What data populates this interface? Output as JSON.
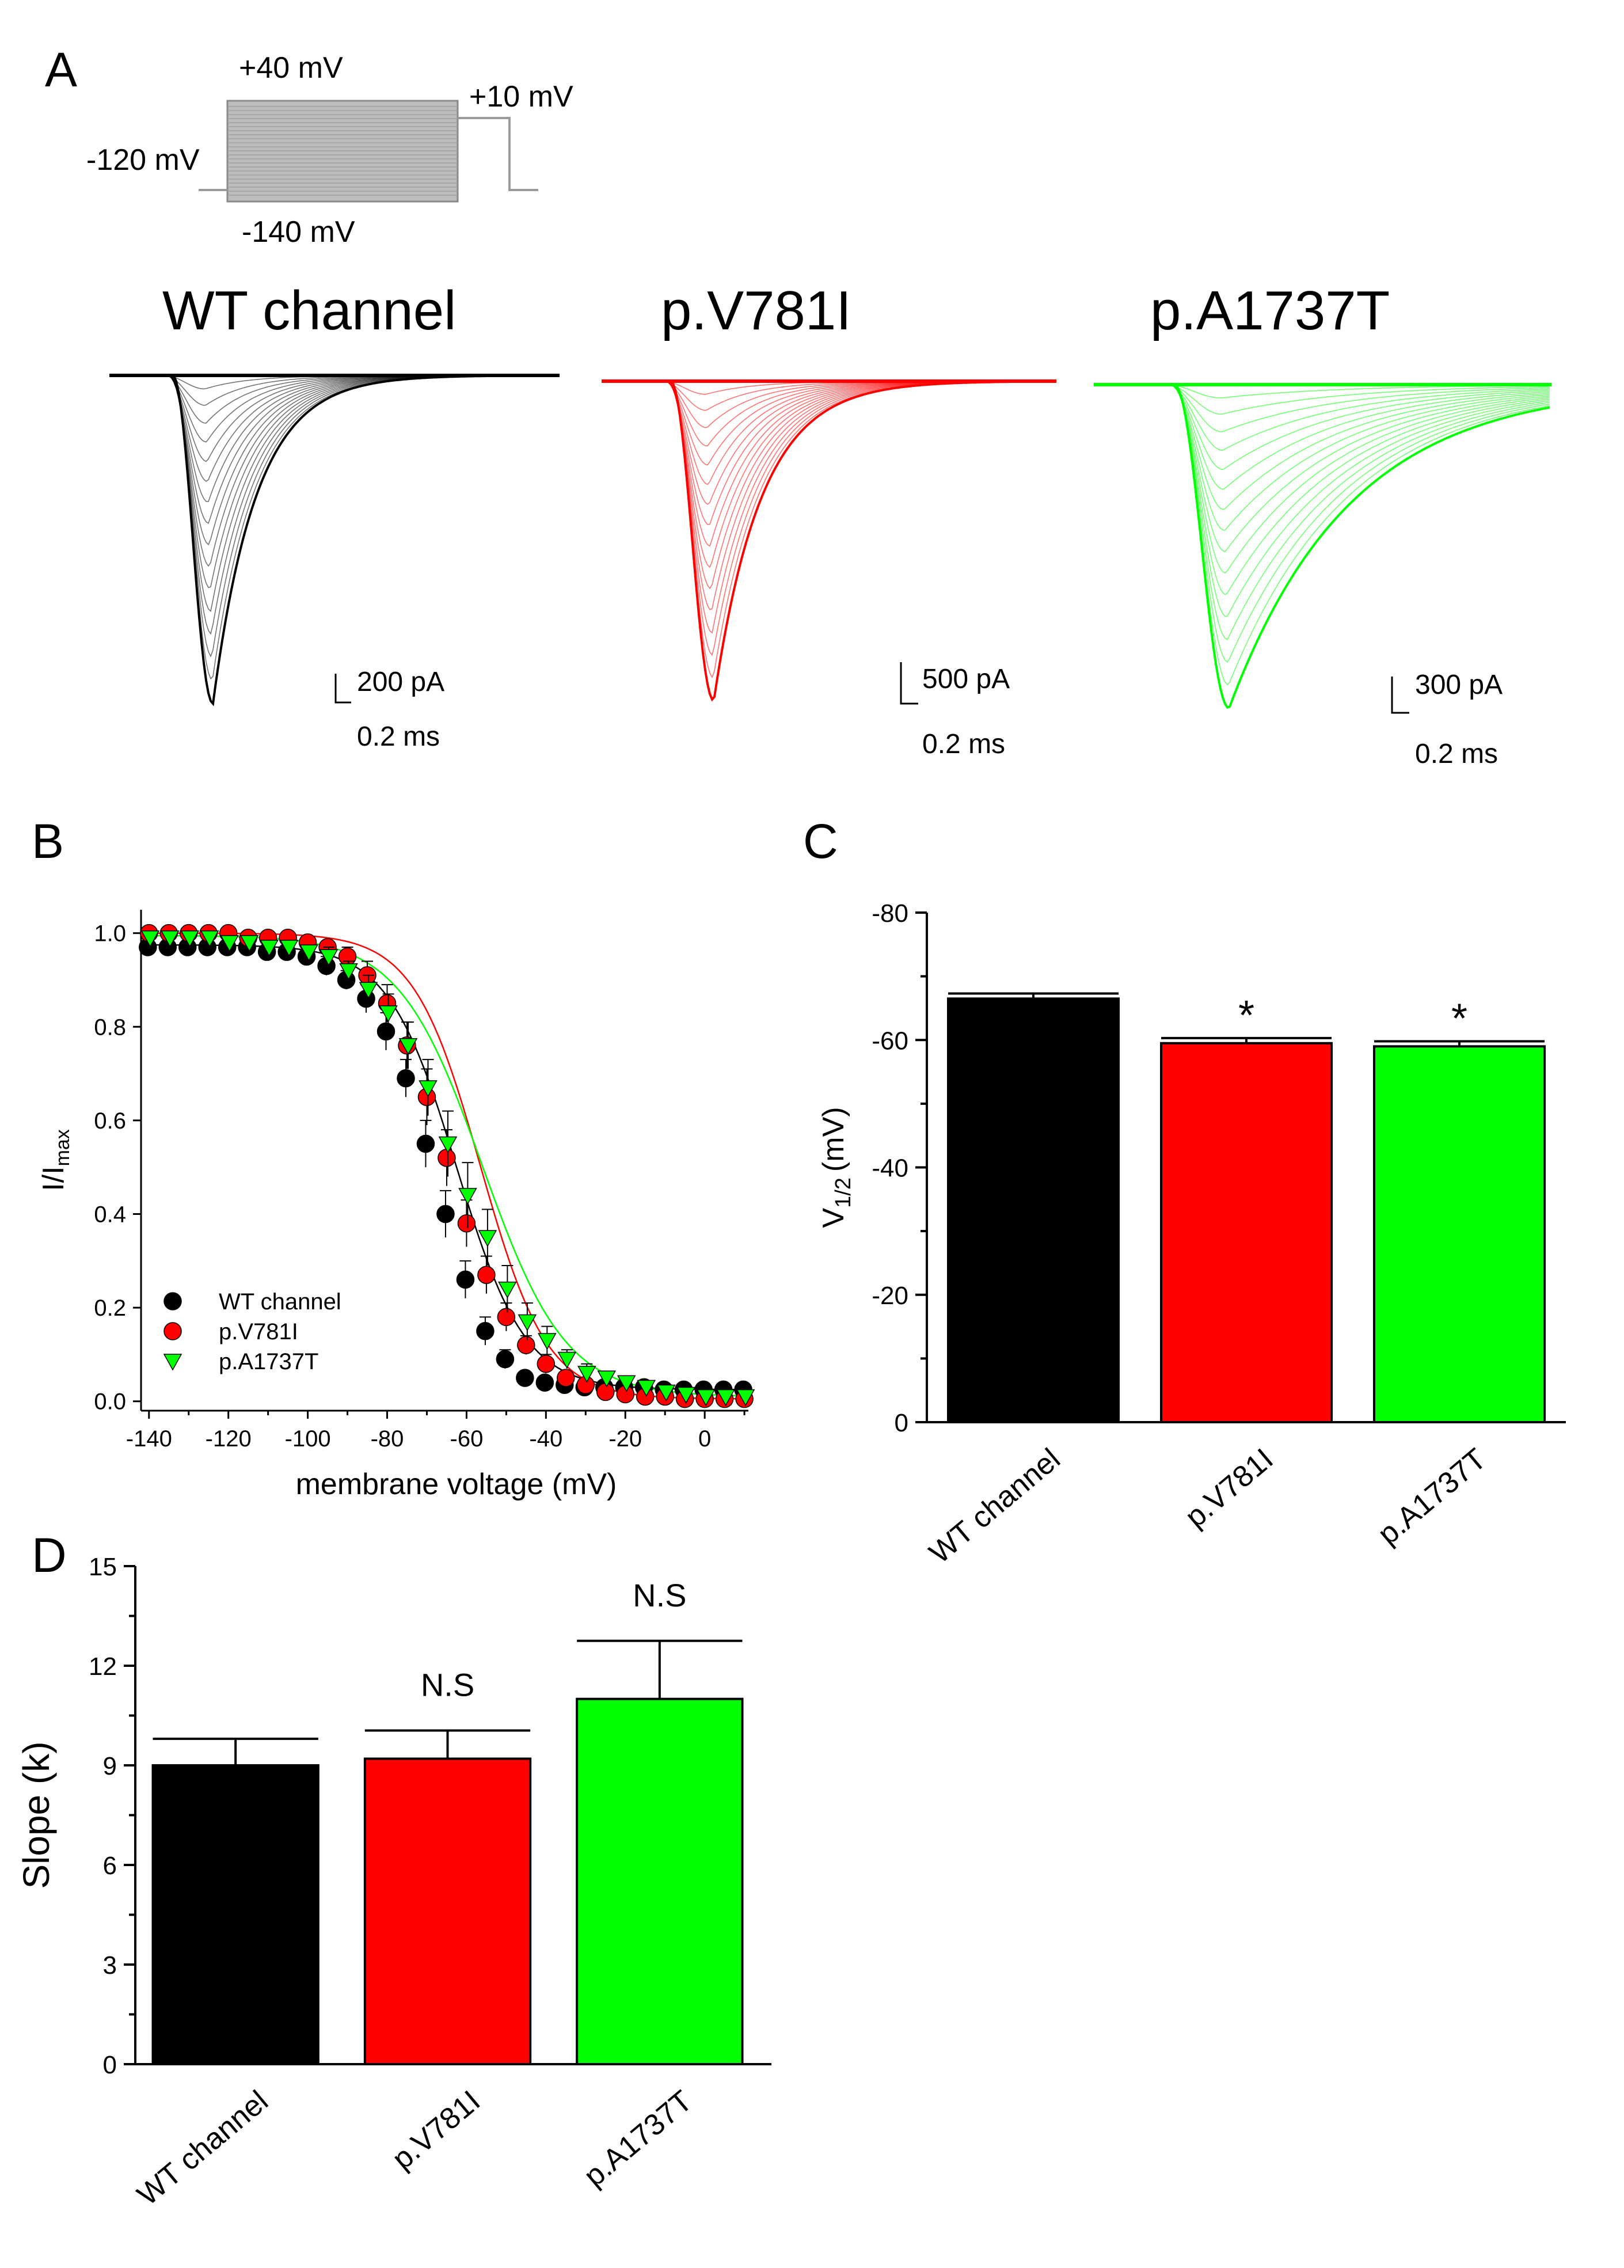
{
  "panel_letters": {
    "a": "A",
    "b": "B",
    "c": "C",
    "d": "D"
  },
  "colors": {
    "wt": "#000000",
    "v781i": "#ff0000",
    "a1737t": "#00ff00",
    "protocol_gray": "#9a9a9a"
  },
  "protocol": {
    "top_label": "+40 mV",
    "test_label": "+10 mV",
    "hold_label": "-120 mV",
    "bottom_label": "-140 mV"
  },
  "traces": [
    {
      "name": "WT channel",
      "scale_current": "200 pA",
      "scale_time": "0.2  ms"
    },
    {
      "name": "p.V781I",
      "scale_current": "500 pA",
      "scale_time": "0.2  ms"
    },
    {
      "name": "p.A1737T",
      "scale_current": "300 pA",
      "scale_time": "0.2  ms"
    }
  ],
  "chart_data": [
    {
      "panel": "B",
      "type": "scatter",
      "xlabel": "membrane voltage (mV)",
      "ylabel_main": "I/I",
      "ylabel_sub": "max",
      "xlim": [
        -142,
        11
      ],
      "ylim": [
        -0.02,
        1.05
      ],
      "xticks": [
        -140,
        -120,
        -100,
        -80,
        -60,
        -40,
        -20,
        0
      ],
      "yticks": [
        0.0,
        0.2,
        0.4,
        0.6,
        0.8,
        1.0
      ],
      "x": [
        -140,
        -135,
        -130,
        -125,
        -120,
        -115,
        -110,
        -105,
        -100,
        -95,
        -90,
        -85,
        -80,
        -75,
        -70,
        -65,
        -60,
        -55,
        -50,
        -45,
        -40,
        -35,
        -30,
        -25,
        -20,
        -15,
        -10,
        -5,
        0,
        5,
        10
      ],
      "legend_position": "bottom-left",
      "series": [
        {
          "name": "WT channel",
          "marker": "circle",
          "values": [
            0.97,
            0.97,
            0.97,
            0.97,
            0.97,
            0.97,
            0.96,
            0.96,
            0.95,
            0.93,
            0.9,
            0.86,
            0.79,
            0.69,
            0.55,
            0.4,
            0.26,
            0.15,
            0.09,
            0.05,
            0.04,
            0.035,
            0.03,
            0.03,
            0.03,
            0.03,
            0.025,
            0.025,
            0.025,
            0.025,
            0.025
          ],
          "errors": [
            0.01,
            0.01,
            0.01,
            0.01,
            0.01,
            0.01,
            0.01,
            0.01,
            0.01,
            0.02,
            0.02,
            0.03,
            0.04,
            0.04,
            0.05,
            0.05,
            0.04,
            0.03,
            0.02,
            0.01,
            0.01,
            0.01,
            0.01,
            0.01,
            0.01,
            0.01,
            0.01,
            0.01,
            0.01,
            0.01,
            0.01
          ]
        },
        {
          "name": "p.V781I",
          "marker": "circle",
          "values": [
            1.0,
            1.0,
            1.0,
            1.0,
            1.0,
            0.99,
            0.99,
            0.99,
            0.98,
            0.97,
            0.95,
            0.91,
            0.85,
            0.76,
            0.65,
            0.52,
            0.38,
            0.27,
            0.18,
            0.12,
            0.08,
            0.05,
            0.035,
            0.02,
            0.015,
            0.01,
            0.01,
            0.005,
            0.005,
            0.005,
            0.005
          ],
          "errors": [
            0.01,
            0.01,
            0.01,
            0.01,
            0.01,
            0.01,
            0.01,
            0.01,
            0.01,
            0.01,
            0.02,
            0.03,
            0.04,
            0.05,
            0.06,
            0.06,
            0.05,
            0.04,
            0.03,
            0.02,
            0.02,
            0.01,
            0.01,
            0.01,
            0.01,
            0.01,
            0.01,
            0.01,
            0.01,
            0.01,
            0.01
          ]
        },
        {
          "name": "p.A1737T",
          "marker": "triangle-down",
          "values": [
            0.99,
            0.99,
            0.99,
            0.99,
            0.98,
            0.98,
            0.97,
            0.97,
            0.96,
            0.95,
            0.92,
            0.88,
            0.83,
            0.76,
            0.67,
            0.55,
            0.44,
            0.35,
            0.24,
            0.17,
            0.13,
            0.09,
            0.06,
            0.05,
            0.04,
            0.03,
            0.02,
            0.015,
            0.01,
            0.01,
            0.01
          ],
          "errors": [
            0.01,
            0.01,
            0.01,
            0.01,
            0.01,
            0.01,
            0.01,
            0.01,
            0.01,
            0.02,
            0.02,
            0.03,
            0.04,
            0.05,
            0.06,
            0.07,
            0.07,
            0.06,
            0.05,
            0.04,
            0.03,
            0.02,
            0.02,
            0.01,
            0.01,
            0.01,
            0.01,
            0.01,
            0.01,
            0.01,
            0.01
          ]
        }
      ]
    },
    {
      "panel": "C",
      "type": "bar",
      "categories": [
        "WT channel",
        "p.V781I",
        "p.A1737T"
      ],
      "values": [
        -66.5,
        -59.5,
        -59.0
      ],
      "errors": [
        0.8,
        0.8,
        0.8
      ],
      "annotations": [
        "",
        "*",
        "*"
      ],
      "ylabel_main": "V",
      "ylabel_sub": "1/2",
      "ylabel_unit": "(mV)",
      "ylim": [
        0,
        -80
      ],
      "yticks": [
        0,
        -20,
        -40,
        -60,
        -80
      ],
      "ytick_labels": [
        "0",
        "-20",
        "-40",
        "-60",
        "-80"
      ]
    },
    {
      "panel": "D",
      "type": "bar",
      "categories": [
        "WT channel",
        "p.V781I",
        "p.A1737T"
      ],
      "values": [
        9.0,
        9.2,
        11.0
      ],
      "errors": [
        0.8,
        0.85,
        1.75
      ],
      "annotations": [
        "",
        "N.S",
        "N.S"
      ],
      "ylabel": "Slope (k)",
      "ylim": [
        0,
        15
      ],
      "yticks": [
        0,
        3,
        6,
        9,
        12,
        15
      ]
    }
  ]
}
